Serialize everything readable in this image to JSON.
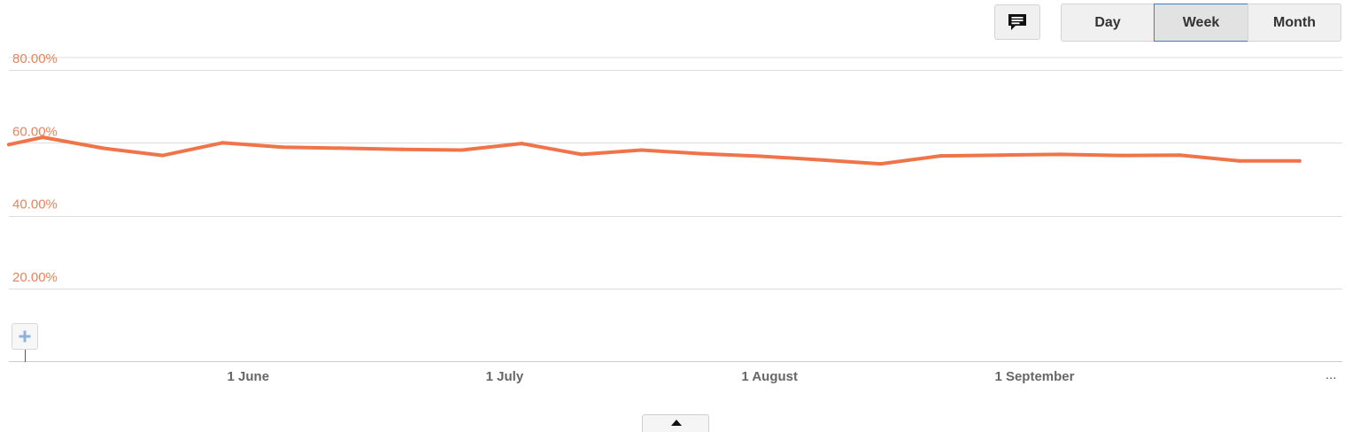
{
  "toolbar": {
    "annotation_icon": "speech-bubble-icon",
    "period_buttons": [
      "Day",
      "Week",
      "Month"
    ],
    "selected_period": "Week"
  },
  "zoom_icon": "plus-icon",
  "more_label": "...",
  "collapse_icon": "chevron-up-icon",
  "colors": {
    "series": "#f0744a",
    "axis_text": "#e8835e",
    "grid": "#dddddd",
    "x_tick_text": "#666666",
    "selected_border": "#3b7fc4"
  },
  "chart_data": {
    "type": "line",
    "title": "",
    "xlabel": "",
    "ylabel": "",
    "x": [
      "2013-05-04",
      "2013-05-08",
      "2013-05-15",
      "2013-05-22",
      "2013-05-29",
      "2013-06-05",
      "2013-06-12",
      "2013-06-19",
      "2013-06-26",
      "2013-07-03",
      "2013-07-10",
      "2013-07-17",
      "2013-07-24",
      "2013-07-31",
      "2013-08-07",
      "2013-08-14",
      "2013-08-21",
      "2013-08-28",
      "2013-09-04",
      "2013-09-11",
      "2013-09-18",
      "2013-09-25",
      "2013-10-02"
    ],
    "series": [
      {
        "values": [
          59.5,
          61.5,
          58.5,
          56.5,
          60.0,
          58.8,
          58.5,
          58.2,
          58.0,
          59.8,
          56.8,
          58.0,
          57.0,
          56.3,
          55.3,
          54.2,
          56.4,
          56.6,
          56.8,
          56.5,
          56.6,
          55.0,
          55.0
        ]
      }
    ],
    "x_ticks": [
      {
        "x": "2013-06-01",
        "label": "1 June"
      },
      {
        "x": "2013-07-01",
        "label": "1 July"
      },
      {
        "x": "2013-08-01",
        "label": "1 August"
      },
      {
        "x": "2013-09-01",
        "label": "1 September"
      }
    ],
    "y_ticks": [
      {
        "value": 20,
        "label": "20.00%"
      },
      {
        "value": 40,
        "label": "40.00%"
      },
      {
        "value": 60,
        "label": "60.00%"
      },
      {
        "value": 80,
        "label": "80.00%"
      }
    ],
    "ylim": [
      0,
      80
    ],
    "xlim": [
      "2013-05-04",
      "2013-10-07"
    ],
    "grid": true,
    "legend": "none"
  }
}
